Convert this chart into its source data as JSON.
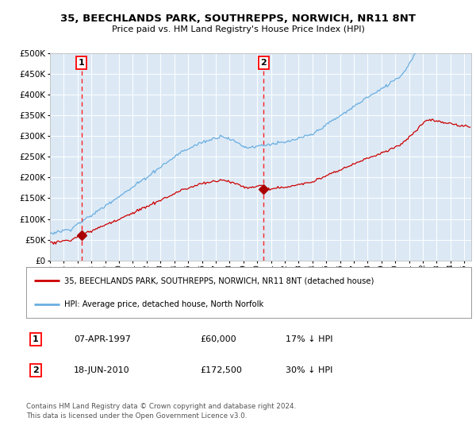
{
  "title1": "35, BEECHLANDS PARK, SOUTHREPPS, NORWICH, NR11 8NT",
  "title2": "Price paid vs. HM Land Registry's House Price Index (HPI)",
  "background_color": "#dce9f5",
  "plot_bg_color": "#dce9f5",
  "grid_color": "#ffffff",
  "hpi_color": "#6aaee0",
  "price_color": "#cc0000",
  "marker_color": "#aa0000",
  "sale1_date": 1997.27,
  "sale1_price": 60000,
  "sale2_date": 2010.46,
  "sale2_price": 172500,
  "ylim_min": 0,
  "ylim_max": 500000,
  "xlim_min": 1995.0,
  "xlim_max": 2025.5,
  "legend_label1": "35, BEECHLANDS PARK, SOUTHREPPS, NORWICH, NR11 8NT (detached house)",
  "legend_label2": "HPI: Average price, detached house, North Norfolk",
  "table_label1": "07-APR-1997",
  "table_price1": "£60,000",
  "table_hpi1": "17% ↓ HPI",
  "table_label2": "18-JUN-2010",
  "table_price2": "£172,500",
  "table_hpi2": "30% ↓ HPI",
  "footer": "Contains HM Land Registry data © Crown copyright and database right 2024.\nThis data is licensed under the Open Government Licence v3.0."
}
